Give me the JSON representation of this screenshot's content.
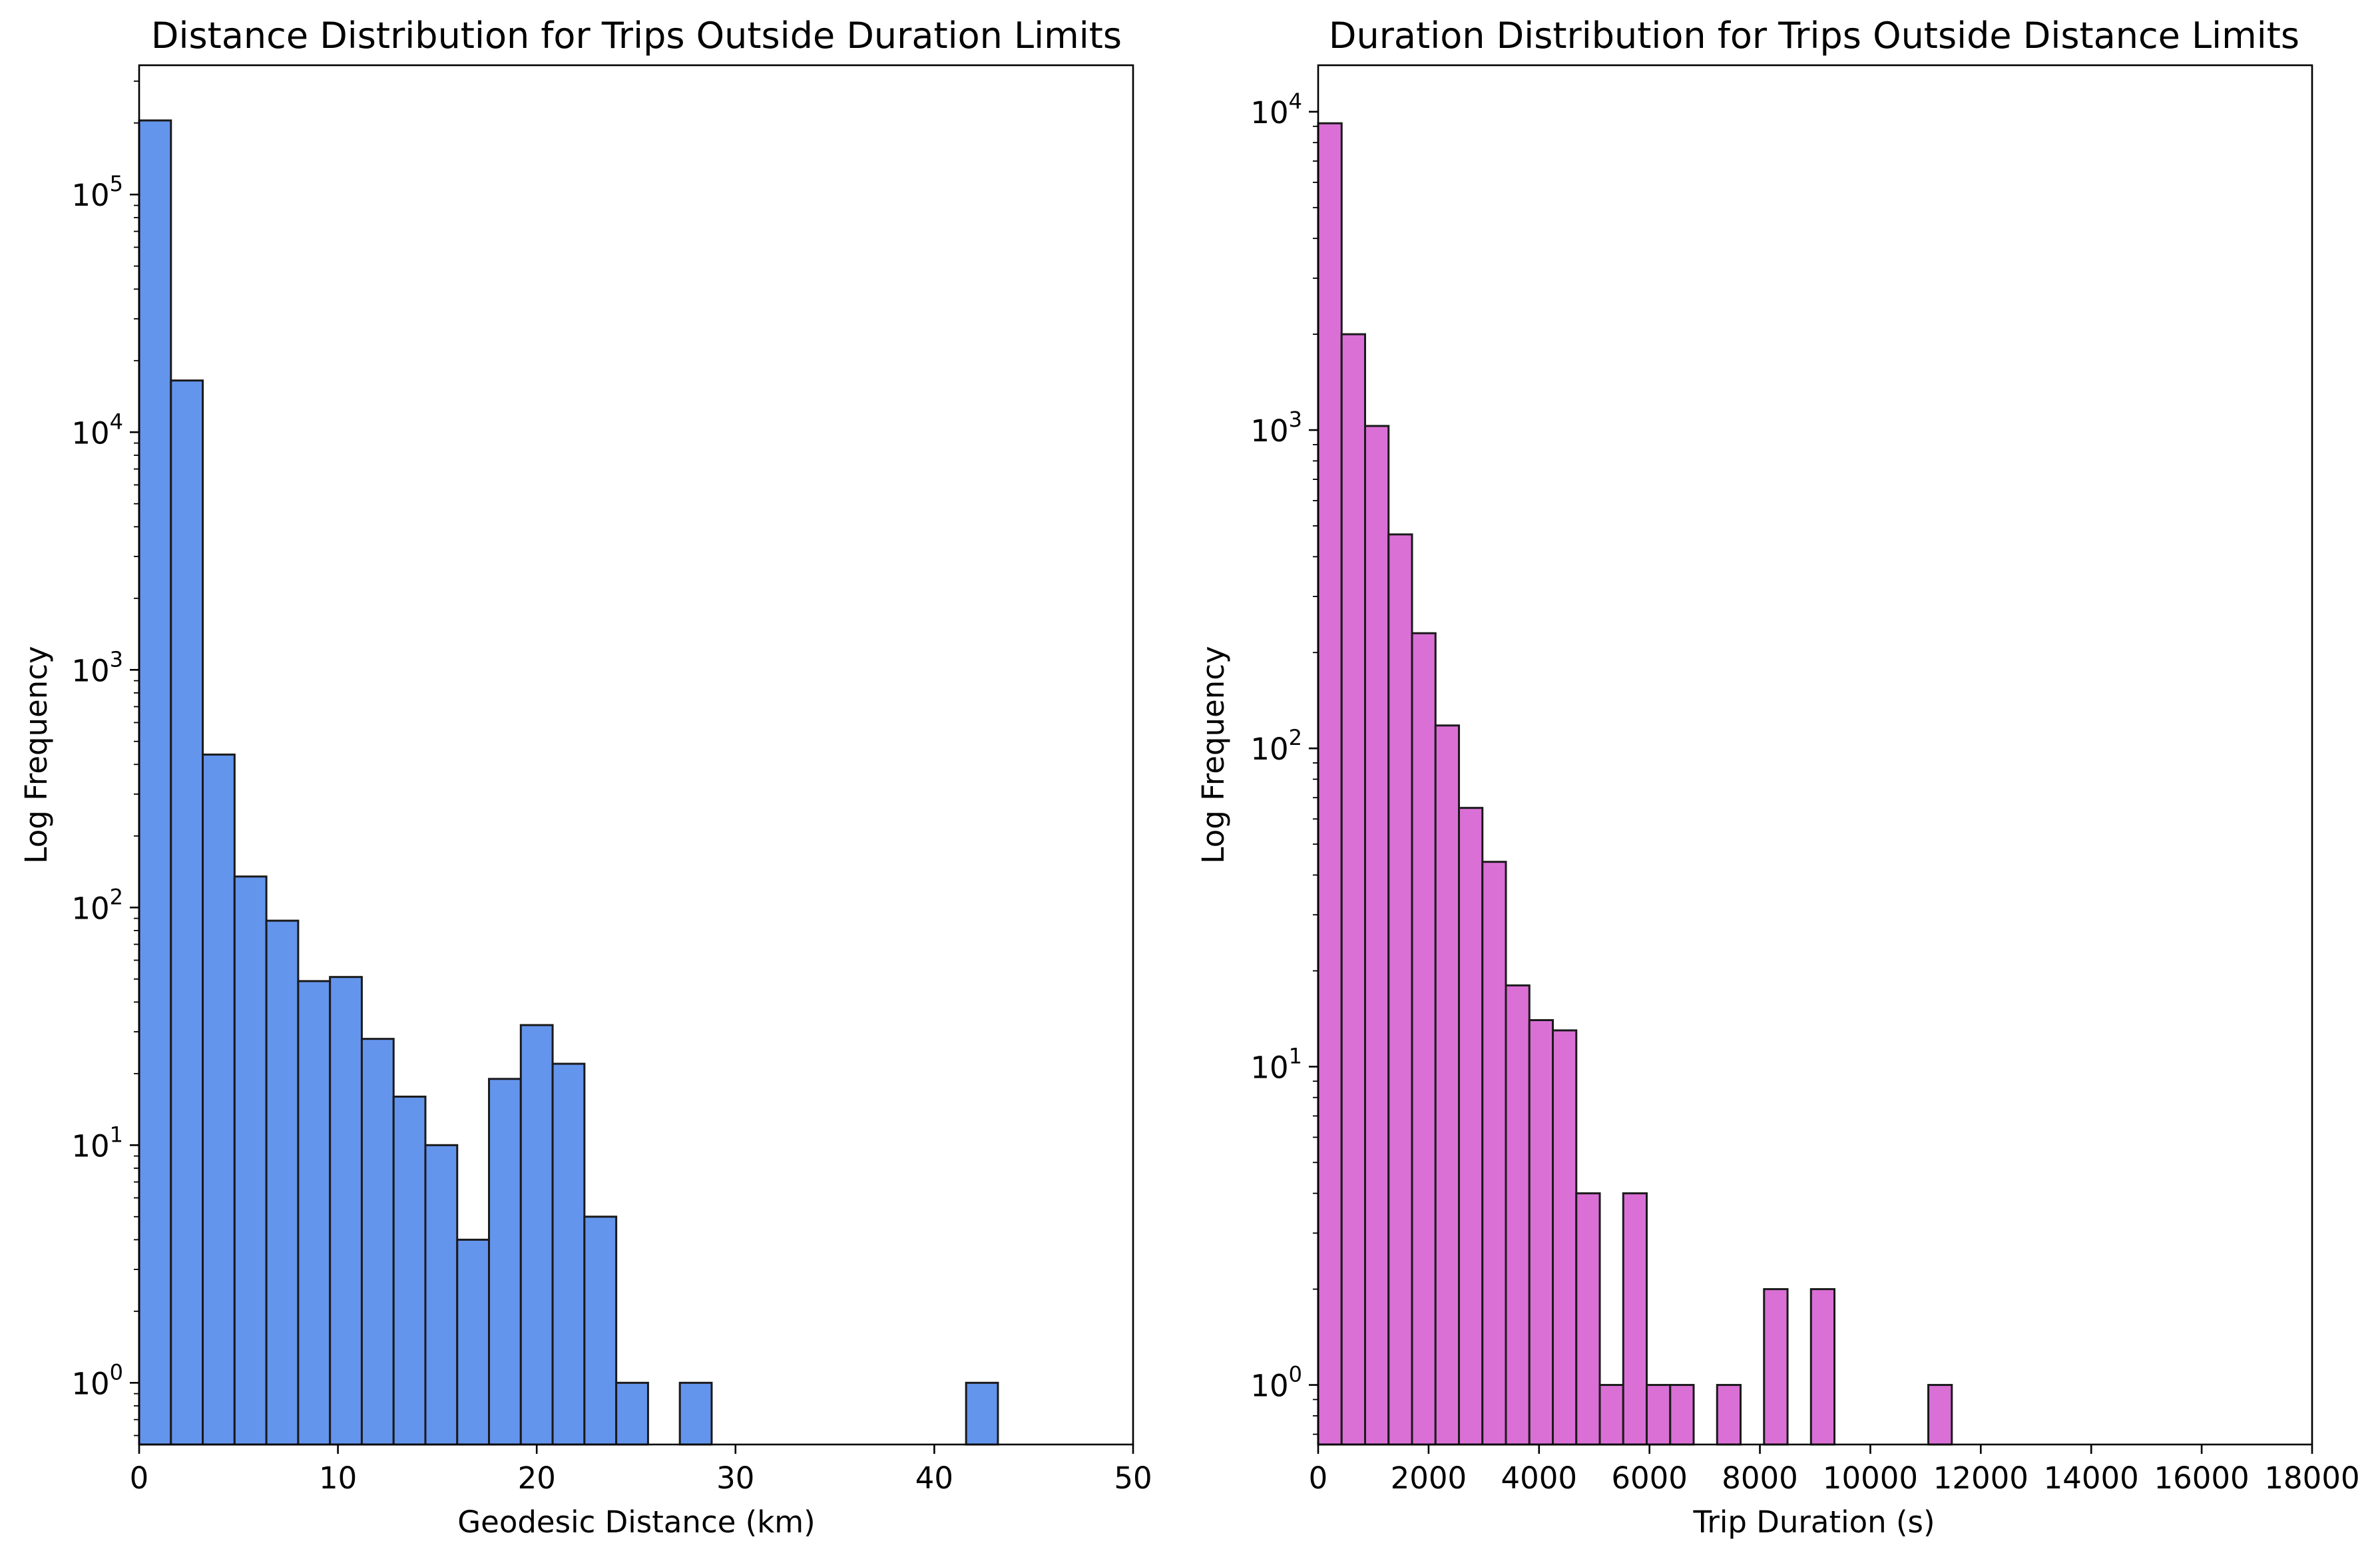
{
  "chart_data": [
    {
      "type": "bar",
      "title": "Distance Distribution for Trips Outside Duration Limits",
      "xlabel": "Geodesic Distance (km)",
      "ylabel": "Log Frequency",
      "yscale": "log",
      "xlim": [
        0,
        50
      ],
      "ylim": [
        0.55,
        350000
      ],
      "bar_color": "#6495ed",
      "grid": false,
      "xticks": [
        0,
        10,
        20,
        30,
        40,
        50
      ],
      "yticks": [
        {
          "value": 1,
          "base": "10",
          "exp": "0"
        },
        {
          "value": 10,
          "base": "10",
          "exp": "1"
        },
        {
          "value": 100,
          "base": "10",
          "exp": "2"
        },
        {
          "value": 1000,
          "base": "10",
          "exp": "3"
        },
        {
          "value": 10000,
          "base": "10",
          "exp": "4"
        },
        {
          "value": 100000,
          "base": "10",
          "exp": "5"
        }
      ],
      "bin_edges": [
        0,
        1.6,
        3.2,
        4.8,
        6.4,
        8.0,
        9.6,
        11.2,
        12.8,
        14.4,
        16.0,
        17.6,
        19.2,
        20.8,
        22.4,
        24.0,
        25.6,
        27.2,
        28.8,
        30.4,
        32.0,
        33.6,
        35.2,
        36.8,
        38.4,
        40.0,
        41.6,
        43.2
      ],
      "counts": [
        205000,
        16500,
        440,
        135,
        88,
        49,
        51,
        28,
        16,
        10,
        4,
        19,
        32,
        22,
        5,
        1,
        0,
        1,
        0,
        0,
        0,
        0,
        0,
        0,
        0,
        0,
        1
      ]
    },
    {
      "type": "bar",
      "title": "Duration Distribution for Trips Outside Distance Limits",
      "xlabel": "Trip Duration (s)",
      "ylabel": "Log Frequency",
      "yscale": "log",
      "xlim": [
        0,
        18000
      ],
      "ylim": [
        0.65,
        14000
      ],
      "bar_color": "#da70d6",
      "grid": false,
      "xticks": [
        0,
        2000,
        4000,
        6000,
        8000,
        10000,
        12000,
        14000,
        16000,
        18000
      ],
      "yticks": [
        {
          "value": 1,
          "base": "10",
          "exp": "0"
        },
        {
          "value": 10,
          "base": "10",
          "exp": "1"
        },
        {
          "value": 100,
          "base": "10",
          "exp": "2"
        },
        {
          "value": 1000,
          "base": "10",
          "exp": "3"
        },
        {
          "value": 10000,
          "base": "10",
          "exp": "4"
        }
      ],
      "bin_edges": [
        0,
        425,
        850,
        1275,
        1700,
        2125,
        2550,
        2975,
        3400,
        3825,
        4250,
        4675,
        5100,
        5525,
        5950,
        6375,
        6800,
        7225,
        7650,
        8075,
        8500,
        8925,
        9350,
        9775,
        10200,
        10625,
        11050,
        11475,
        11900
      ],
      "counts": [
        9200,
        2000,
        1030,
        470,
        230,
        118,
        65,
        44,
        18,
        14,
        13,
        4,
        1,
        4,
        1,
        1,
        0,
        1,
        0,
        2,
        0,
        2,
        0,
        0,
        0,
        0,
        1,
        0
      ]
    }
  ]
}
